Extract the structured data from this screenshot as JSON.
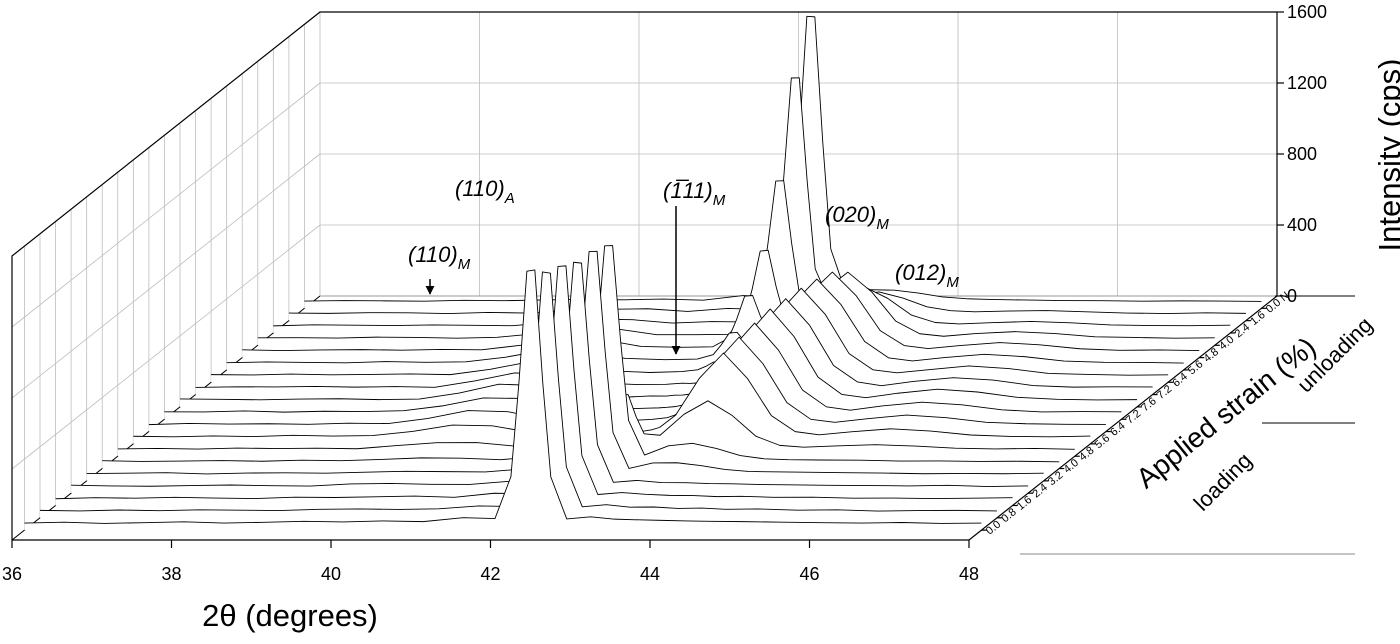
{
  "chart_data": {
    "type": "waterfall",
    "x_label": "2θ (degrees)",
    "y_label": "Intensity (cps)",
    "strain_axis": {
      "label": "Applied strain (%)",
      "groups": [
        "loading",
        "unloading"
      ]
    },
    "xlim": [
      36,
      48
    ],
    "xticks": [
      36,
      38,
      40,
      42,
      44,
      46,
      48
    ],
    "ylim": [
      0,
      1600
    ],
    "yticks": [
      0,
      400,
      800,
      1200,
      1600
    ],
    "grid": true,
    "line_color": "#000000",
    "annotations": [
      {
        "text": "(110)",
        "sub": "M"
      },
      {
        "text": "(110)",
        "sub": "A"
      },
      {
        "text": "(1̅11)",
        "sub": "M"
      },
      {
        "text": "(020)",
        "sub": "M"
      },
      {
        "text": "(012)",
        "sub": "M"
      }
    ],
    "x": [
      36,
      36.5,
      37,
      37.5,
      38,
      38.5,
      39,
      39.5,
      40,
      40.5,
      41,
      41.5,
      41.9,
      42.1,
      42.2,
      42.3,
      42.4,
      42.5,
      42.6,
      42.8,
      43.1,
      43.4,
      43.7,
      44,
      44.3,
      44.6,
      45,
      45.5,
      46,
      46.5,
      47,
      47.5,
      48
    ],
    "series": [
      {
        "name": "0.0",
        "values": [
          40,
          45,
          38,
          42,
          47,
          40,
          44,
          50,
          46,
          52,
          48,
          70,
          65,
          302,
          828,
          1459,
          1466,
          827,
          300,
          63,
          75,
          62,
          58,
          55,
          52,
          50,
          48,
          45,
          42,
          40,
          43,
          38,
          40
        ]
      },
      {
        "name": "0.8",
        "values": [
          42,
          39,
          44,
          40,
          45,
          43,
          41,
          48,
          50,
          47,
          51,
          67,
          64,
          289,
          787,
          1385,
          1378,
          786,
          287,
          62,
          74,
          60,
          61,
          53,
          55,
          48,
          50,
          43,
          45,
          38,
          41,
          42,
          39
        ]
      },
      {
        "name": "1.6",
        "values": [
          38,
          44,
          41,
          46,
          42,
          39,
          47,
          45,
          49,
          53,
          46,
          69,
          66,
          283,
          767,
          1347,
          1350,
          766,
          281,
          62,
          73,
          63,
          57,
          56,
          50,
          52,
          46,
          47,
          41,
          42,
          39,
          41,
          44
        ]
      },
      {
        "name": "2.4",
        "values": [
          45,
          41,
          39,
          43,
          46,
          42,
          40,
          52,
          55,
          50,
          49,
          67,
          63,
          275,
          741,
          1301,
          1296,
          740,
          273,
          61,
          72,
          60,
          59,
          54,
          53,
          49,
          47,
          44,
          43,
          41,
          44,
          37,
          41
        ]
      },
      {
        "name": "3.2",
        "values": [
          41,
          43,
          46,
          39,
          44,
          45,
          43,
          49,
          54,
          52,
          50,
          68,
          64,
          274,
          736,
          1292,
          1293,
          735,
          272,
          70,
          101,
          102,
          86,
          64,
          53,
          51,
          49,
          46,
          44,
          40,
          42,
          40,
          43
        ]
      },
      {
        "name": "4.0",
        "values": [
          44,
          40,
          42,
          45,
          41,
          47,
          44,
          51,
          60,
          58,
          50,
          68,
          67,
          268,
          717,
          1255,
          1256,
          718,
          271,
          76,
          128,
          142,
          113,
          73,
          55,
          50,
          48,
          47,
          42,
          43,
          40,
          41,
          38
        ]
      },
      {
        "name": "4.8",
        "values": [
          41,
          44,
          40,
          46,
          43,
          45,
          42,
          60,
          76,
          77,
          56,
          58,
          61,
          110,
          216,
          345,
          347,
          222,
          126,
          118,
          236,
          312,
          231,
          113,
          61,
          51,
          58,
          65,
          57,
          45,
          41,
          44,
          39
        ]
      },
      {
        "name": "5.6",
        "values": [
          43,
          40,
          45,
          41,
          48,
          44,
          47,
          70,
          106,
          102,
          63,
          54,
          59,
          62,
          65,
          67,
          72,
          79,
          93,
          162,
          371,
          512,
          369,
          159,
          69,
          51,
          68,
          85,
          72,
          50,
          42,
          40,
          44
        ]
      },
      {
        "name": "6.4",
        "values": [
          39,
          46,
          42,
          44,
          41,
          47,
          45,
          74,
          118,
          112,
          66,
          56,
          61,
          64,
          66,
          68,
          73,
          78,
          94,
          166,
          384,
          532,
          382,
          163,
          69,
          52,
          72,
          93,
          78,
          52,
          44,
          41,
          40
        ]
      },
      {
        "name": "7.2",
        "values": [
          42,
          41,
          47,
          40,
          45,
          43,
          48,
          76,
          120,
          117,
          68,
          55,
          60,
          63,
          64,
          67,
          71,
          80,
          95,
          168,
          391,
          542,
          389,
          165,
          70,
          51,
          75,
          96,
          81,
          53,
          41,
          43,
          42
        ]
      },
      {
        "name": "7.6",
        "values": [
          45,
          43,
          40,
          44,
          46,
          41,
          44,
          78,
          128,
          120,
          70,
          53,
          62,
          61,
          66,
          67,
          72,
          80,
          96,
          171,
          398,
          552,
          396,
          168,
          70,
          52,
          77,
          100,
          84,
          54,
          43,
          39,
          41
        ]
      },
      {
        "name": "7.2",
        "values": [
          40,
          44,
          43,
          46,
          42,
          45,
          41,
          77,
          122,
          118,
          67,
          57,
          58,
          64,
          63,
          66,
          72,
          79,
          93,
          170,
          390,
          540,
          390,
          164,
          71,
          50,
          74,
          95,
          82,
          51,
          42,
          44,
          43
        ]
      },
      {
        "name": "6.4",
        "values": [
          43,
          41,
          46,
          42,
          44,
          47,
          43,
          73,
          116,
          113,
          65,
          55,
          60,
          70,
          89,
          114,
          119,
          104,
          102,
          165,
          383,
          530,
          383,
          161,
          70,
          53,
          71,
          92,
          77,
          50,
          44,
          40,
          42
        ]
      },
      {
        "name": "5.6",
        "values": [
          41,
          45,
          42,
          40,
          47,
          43,
          46,
          72,
          112,
          106,
          65,
          58,
          61,
          86,
          140,
          207,
          212,
          156,
          117,
          162,
          373,
          512,
          370,
          160,
          68,
          51,
          70,
          88,
          75,
          50,
          43,
          42,
          39
        ]
      },
      {
        "name": "4.8",
        "values": [
          44,
          40,
          43,
          45,
          42,
          46,
          44,
          70,
          106,
          103,
          63,
          58,
          61,
          110,
          216,
          346,
          350,
          231,
          139,
          157,
          353,
          482,
          348,
          152,
          68,
          51,
          68,
          85,
          72,
          50,
          41,
          43,
          40
        ]
      },
      {
        "name": "4.0",
        "values": [
          42,
          43,
          41,
          46,
          44,
          40,
          45,
          66,
          94,
          92,
          60,
          60,
          62,
          142,
          318,
          531,
          535,
          330,
          166,
          141,
          307,
          412,
          300,
          136,
          65,
          51,
          66,
          77,
          66,
          48,
          44,
          40,
          42
        ]
      },
      {
        "name": "2.4",
        "values": [
          40,
          46,
          44,
          42,
          45,
          43,
          41,
          60,
          78,
          75,
          56,
          64,
          62,
          198,
          497,
          856,
          858,
          503,
          211,
          106,
          207,
          262,
          196,
          101,
          59,
          51,
          58,
          65,
          57,
          45,
          42,
          41,
          44
        ]
      },
      {
        "name": "1.6",
        "values": [
          43,
          41,
          45,
          44,
          40,
          46,
          43,
          56,
          64,
          67,
          52,
          69,
          64,
          286,
          777,
          1367,
          1368,
          780,
          291,
          85,
          143,
          162,
          127,
          78,
          56,
          50,
          54,
          57,
          50,
          43,
          40,
          44,
          41
        ]
      },
      {
        "name": "0.0 N",
        "values": [
          41,
          44,
          42,
          40,
          45,
          43,
          47,
          50,
          48,
          52,
          46,
          72,
          65,
          334,
          930,
          1645,
          1642,
          931,
          334,
          72,
          105,
          102,
          86,
          64,
          54,
          50,
          47,
          44,
          43,
          40,
          42,
          41,
          39
        ]
      }
    ]
  }
}
